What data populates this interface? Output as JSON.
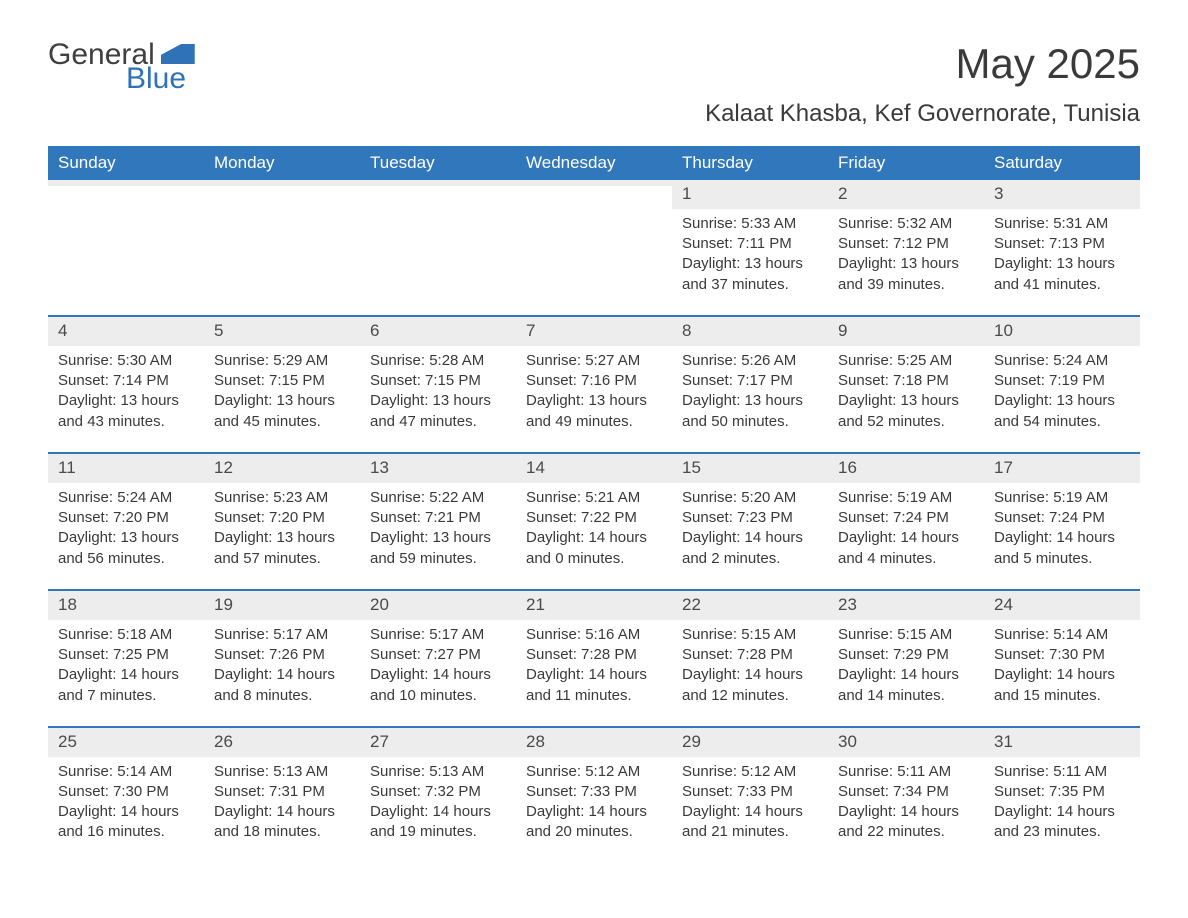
{
  "logo": {
    "text1": "General",
    "text2": "Blue"
  },
  "title": "May 2025",
  "location": "Kalaat Khasba, Kef Governorate, Tunisia",
  "colors": {
    "header_bg": "#3077bb",
    "header_fg": "#ffffff",
    "date_bar_bg": "#ededed",
    "text": "#3a3a3a",
    "logo_accent": "#2f72b7",
    "border": "#3077bb",
    "page_bg": "#ffffff"
  },
  "fonts": {
    "title_size_pt": 32,
    "location_size_pt": 18,
    "header_size_pt": 13,
    "body_size_pt": 11
  },
  "day_names": [
    "Sunday",
    "Monday",
    "Tuesday",
    "Wednesday",
    "Thursday",
    "Friday",
    "Saturday"
  ],
  "weeks": [
    [
      {
        "empty": true
      },
      {
        "empty": true
      },
      {
        "empty": true
      },
      {
        "empty": true
      },
      {
        "date": "1",
        "sunrise": "Sunrise: 5:33 AM",
        "sunset": "Sunset: 7:11 PM",
        "daylight": "Daylight: 13 hours and 37 minutes."
      },
      {
        "date": "2",
        "sunrise": "Sunrise: 5:32 AM",
        "sunset": "Sunset: 7:12 PM",
        "daylight": "Daylight: 13 hours and 39 minutes."
      },
      {
        "date": "3",
        "sunrise": "Sunrise: 5:31 AM",
        "sunset": "Sunset: 7:13 PM",
        "daylight": "Daylight: 13 hours and 41 minutes."
      }
    ],
    [
      {
        "date": "4",
        "sunrise": "Sunrise: 5:30 AM",
        "sunset": "Sunset: 7:14 PM",
        "daylight": "Daylight: 13 hours and 43 minutes."
      },
      {
        "date": "5",
        "sunrise": "Sunrise: 5:29 AM",
        "sunset": "Sunset: 7:15 PM",
        "daylight": "Daylight: 13 hours and 45 minutes."
      },
      {
        "date": "6",
        "sunrise": "Sunrise: 5:28 AM",
        "sunset": "Sunset: 7:15 PM",
        "daylight": "Daylight: 13 hours and 47 minutes."
      },
      {
        "date": "7",
        "sunrise": "Sunrise: 5:27 AM",
        "sunset": "Sunset: 7:16 PM",
        "daylight": "Daylight: 13 hours and 49 minutes."
      },
      {
        "date": "8",
        "sunrise": "Sunrise: 5:26 AM",
        "sunset": "Sunset: 7:17 PM",
        "daylight": "Daylight: 13 hours and 50 minutes."
      },
      {
        "date": "9",
        "sunrise": "Sunrise: 5:25 AM",
        "sunset": "Sunset: 7:18 PM",
        "daylight": "Daylight: 13 hours and 52 minutes."
      },
      {
        "date": "10",
        "sunrise": "Sunrise: 5:24 AM",
        "sunset": "Sunset: 7:19 PM",
        "daylight": "Daylight: 13 hours and 54 minutes."
      }
    ],
    [
      {
        "date": "11",
        "sunrise": "Sunrise: 5:24 AM",
        "sunset": "Sunset: 7:20 PM",
        "daylight": "Daylight: 13 hours and 56 minutes."
      },
      {
        "date": "12",
        "sunrise": "Sunrise: 5:23 AM",
        "sunset": "Sunset: 7:20 PM",
        "daylight": "Daylight: 13 hours and 57 minutes."
      },
      {
        "date": "13",
        "sunrise": "Sunrise: 5:22 AM",
        "sunset": "Sunset: 7:21 PM",
        "daylight": "Daylight: 13 hours and 59 minutes."
      },
      {
        "date": "14",
        "sunrise": "Sunrise: 5:21 AM",
        "sunset": "Sunset: 7:22 PM",
        "daylight": "Daylight: 14 hours and 0 minutes."
      },
      {
        "date": "15",
        "sunrise": "Sunrise: 5:20 AM",
        "sunset": "Sunset: 7:23 PM",
        "daylight": "Daylight: 14 hours and 2 minutes."
      },
      {
        "date": "16",
        "sunrise": "Sunrise: 5:19 AM",
        "sunset": "Sunset: 7:24 PM",
        "daylight": "Daylight: 14 hours and 4 minutes."
      },
      {
        "date": "17",
        "sunrise": "Sunrise: 5:19 AM",
        "sunset": "Sunset: 7:24 PM",
        "daylight": "Daylight: 14 hours and 5 minutes."
      }
    ],
    [
      {
        "date": "18",
        "sunrise": "Sunrise: 5:18 AM",
        "sunset": "Sunset: 7:25 PM",
        "daylight": "Daylight: 14 hours and 7 minutes."
      },
      {
        "date": "19",
        "sunrise": "Sunrise: 5:17 AM",
        "sunset": "Sunset: 7:26 PM",
        "daylight": "Daylight: 14 hours and 8 minutes."
      },
      {
        "date": "20",
        "sunrise": "Sunrise: 5:17 AM",
        "sunset": "Sunset: 7:27 PM",
        "daylight": "Daylight: 14 hours and 10 minutes."
      },
      {
        "date": "21",
        "sunrise": "Sunrise: 5:16 AM",
        "sunset": "Sunset: 7:28 PM",
        "daylight": "Daylight: 14 hours and 11 minutes."
      },
      {
        "date": "22",
        "sunrise": "Sunrise: 5:15 AM",
        "sunset": "Sunset: 7:28 PM",
        "daylight": "Daylight: 14 hours and 12 minutes."
      },
      {
        "date": "23",
        "sunrise": "Sunrise: 5:15 AM",
        "sunset": "Sunset: 7:29 PM",
        "daylight": "Daylight: 14 hours and 14 minutes."
      },
      {
        "date": "24",
        "sunrise": "Sunrise: 5:14 AM",
        "sunset": "Sunset: 7:30 PM",
        "daylight": "Daylight: 14 hours and 15 minutes."
      }
    ],
    [
      {
        "date": "25",
        "sunrise": "Sunrise: 5:14 AM",
        "sunset": "Sunset: 7:30 PM",
        "daylight": "Daylight: 14 hours and 16 minutes."
      },
      {
        "date": "26",
        "sunrise": "Sunrise: 5:13 AM",
        "sunset": "Sunset: 7:31 PM",
        "daylight": "Daylight: 14 hours and 18 minutes."
      },
      {
        "date": "27",
        "sunrise": "Sunrise: 5:13 AM",
        "sunset": "Sunset: 7:32 PM",
        "daylight": "Daylight: 14 hours and 19 minutes."
      },
      {
        "date": "28",
        "sunrise": "Sunrise: 5:12 AM",
        "sunset": "Sunset: 7:33 PM",
        "daylight": "Daylight: 14 hours and 20 minutes."
      },
      {
        "date": "29",
        "sunrise": "Sunrise: 5:12 AM",
        "sunset": "Sunset: 7:33 PM",
        "daylight": "Daylight: 14 hours and 21 minutes."
      },
      {
        "date": "30",
        "sunrise": "Sunrise: 5:11 AM",
        "sunset": "Sunset: 7:34 PM",
        "daylight": "Daylight: 14 hours and 22 minutes."
      },
      {
        "date": "31",
        "sunrise": "Sunrise: 5:11 AM",
        "sunset": "Sunset: 7:35 PM",
        "daylight": "Daylight: 14 hours and 23 minutes."
      }
    ]
  ]
}
